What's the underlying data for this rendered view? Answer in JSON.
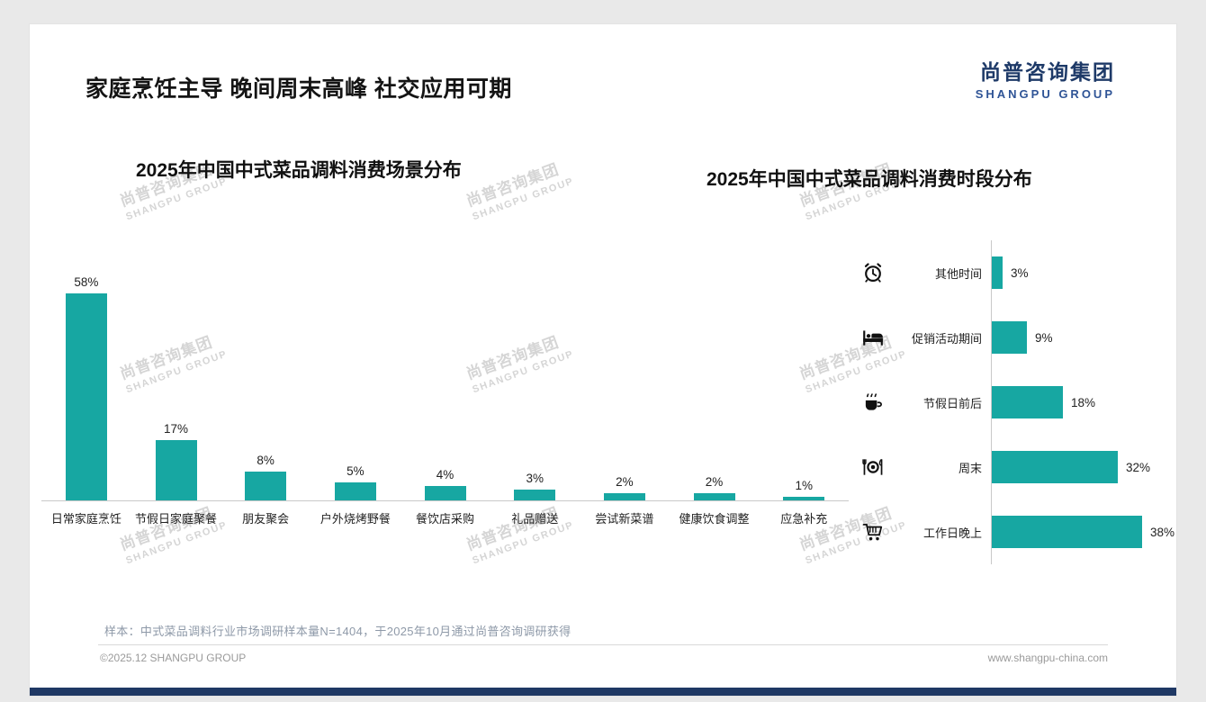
{
  "page": {
    "title": "家庭烹饪主导 晚间周末高峰 社交应用可期",
    "logo": {
      "cn": "尚普咨询集团",
      "en": "SHANGPU GROUP"
    },
    "watermark": {
      "line1": "尚普咨询集团",
      "line2": "SHANGPU GROUP"
    },
    "footer": {
      "note": "样本：中式菜品调料行业市场调研样本量N=1404，于2025年10月通过尚普咨询调研获得",
      "copyright": "©2025.12 SHANGPU GROUP",
      "website": "www.shangpu-china.com"
    },
    "colors": {
      "accent": "#17a7a2",
      "navy": "#1f3864",
      "watermark": "#cbcbcb"
    }
  },
  "chart_data": [
    {
      "type": "bar",
      "orientation": "vertical",
      "title": "2025年中国中式菜品调料消费场景分布",
      "categories": [
        "日常家庭烹饪",
        "节假日家庭聚餐",
        "朋友聚会",
        "户外烧烤野餐",
        "餐饮店采购",
        "礼品赠送",
        "尝试新菜谱",
        "健康饮食调整",
        "应急补充"
      ],
      "values": [
        58,
        17,
        8,
        5,
        4,
        3,
        2,
        2,
        1
      ],
      "value_labels": [
        "58%",
        "17%",
        "8%",
        "5%",
        "4%",
        "3%",
        "2%",
        "2%",
        "1%"
      ],
      "unit": "%",
      "bar_color": "#17a7a2",
      "ylim": [
        0,
        60
      ],
      "grid": false,
      "legend": false
    },
    {
      "type": "bar",
      "orientation": "horizontal",
      "title": "2025年中国中式菜品调料消费时段分布",
      "categories": [
        "其他时间",
        "促销活动期间",
        "节假日前后",
        "周末",
        "工作日晚上"
      ],
      "values": [
        3,
        9,
        18,
        32,
        38
      ],
      "value_labels": [
        "3%",
        "9%",
        "18%",
        "32%",
        "38%"
      ],
      "icons": [
        "alarm-clock-icon",
        "bed-icon",
        "coffee-icon",
        "dining-icon",
        "cart-icon"
      ],
      "unit": "%",
      "bar_color": "#17a7a2",
      "xlim": [
        0,
        40
      ],
      "grid": false,
      "legend": false
    }
  ]
}
